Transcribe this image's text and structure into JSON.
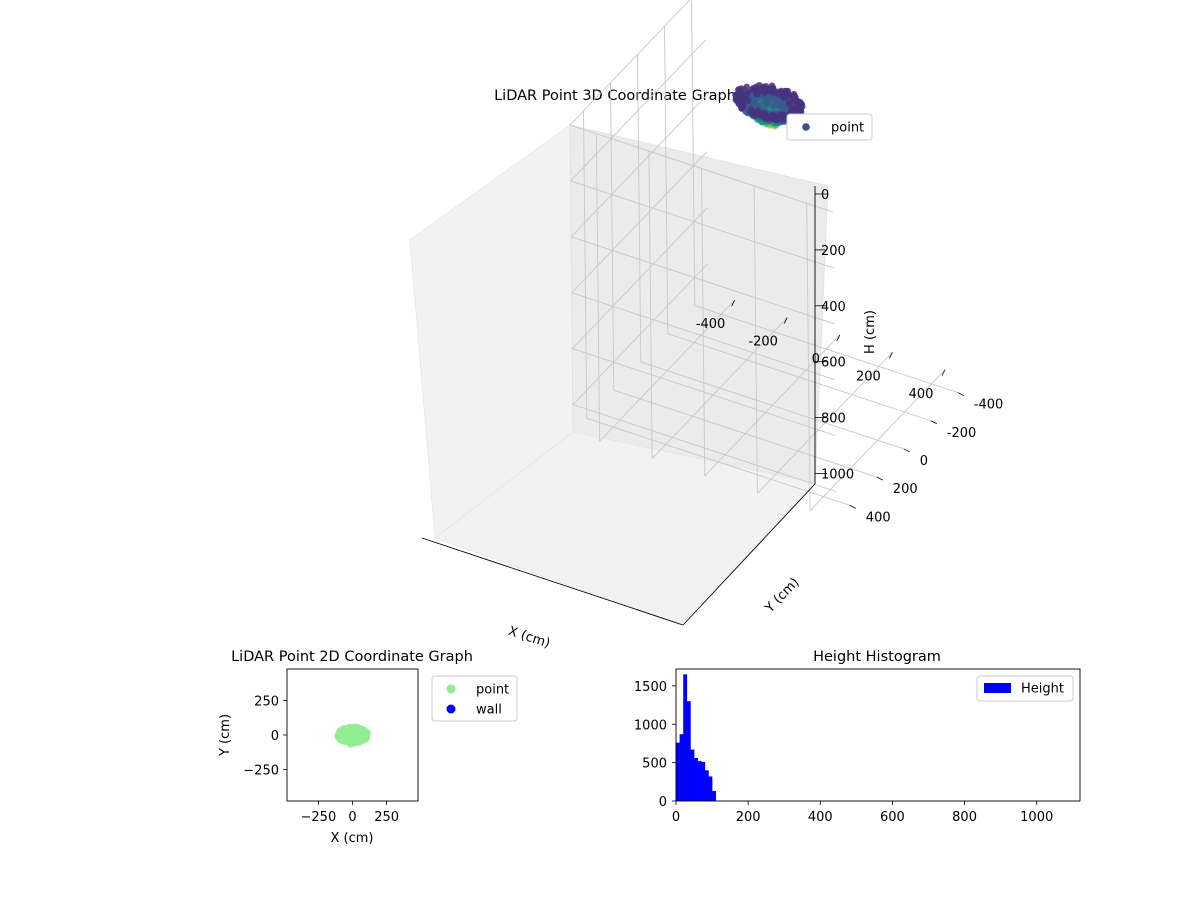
{
  "chart_data": [
    {
      "type": "scatter",
      "projection": "3d",
      "title": "LiDAR Point 3D Coordinate Graph",
      "xlabel": "X (cm)",
      "ylabel": "Y (cm)",
      "zlabel": "H (cm)",
      "xlim": [
        -500,
        500
      ],
      "ylim": [
        -500,
        500
      ],
      "zlim": [
        1100,
        0
      ],
      "z_inverted": true,
      "x_ticks": [
        "-400",
        "-200",
        "0",
        "200",
        "400"
      ],
      "y_ticks": [
        "-400",
        "-200",
        "0",
        "200",
        "400"
      ],
      "z_ticks": [
        "0",
        "200",
        "400",
        "600",
        "800",
        "1000"
      ],
      "colormap": "viridis",
      "grid": true,
      "legend": {
        "placement": "top-right",
        "entries": [
          {
            "label": "point",
            "color": "#3b528b"
          }
        ]
      },
      "cluster": {
        "x_range": [
          -120,
          120
        ],
        "y_range": [
          -90,
          90
        ],
        "h_range": [
          0,
          110
        ]
      }
    },
    {
      "type": "scatter",
      "title": "LiDAR Point 2D Coordinate Graph",
      "xlabel": "X (cm)",
      "ylabel": "Y (cm)",
      "xlim": [
        -480,
        480
      ],
      "ylim": [
        -480,
        480
      ],
      "x_ticks": [
        "−250",
        "0",
        "250"
      ],
      "y_ticks": [
        "−250",
        "0",
        "250"
      ],
      "series": [
        {
          "name": "point",
          "color": "#90ee90",
          "shape": "blob",
          "x_range": [
            -120,
            120
          ],
          "y_range": [
            -60,
            60
          ]
        },
        {
          "name": "wall",
          "color": "#0000ff",
          "values": []
        }
      ],
      "legend": {
        "placement": "outside-right",
        "entries": [
          {
            "label": "point",
            "color": "#90ee90"
          },
          {
            "label": "wall",
            "color": "#0000ff"
          }
        ]
      }
    },
    {
      "type": "bar",
      "subtype": "histogram",
      "title": "Height Histogram",
      "xlabel": "",
      "ylabel": "",
      "xlim": [
        0,
        1120
      ],
      "ylim": [
        0,
        1720
      ],
      "x_ticks": [
        "0",
        "200",
        "400",
        "600",
        "800",
        "1000"
      ],
      "y_ticks": [
        "0",
        "500",
        "1000",
        "1500"
      ],
      "series": [
        {
          "name": "Height",
          "color": "#0000ff",
          "bin_width": 10,
          "bins_start": [
            0,
            10,
            20,
            30,
            40,
            50,
            60,
            70,
            80,
            90,
            100
          ],
          "values": [
            760,
            870,
            1650,
            1300,
            670,
            560,
            520,
            510,
            400,
            320,
            130
          ]
        }
      ],
      "legend": {
        "placement": "top-right",
        "entries": [
          {
            "label": "Height",
            "color": "#0000ff"
          }
        ]
      }
    }
  ]
}
